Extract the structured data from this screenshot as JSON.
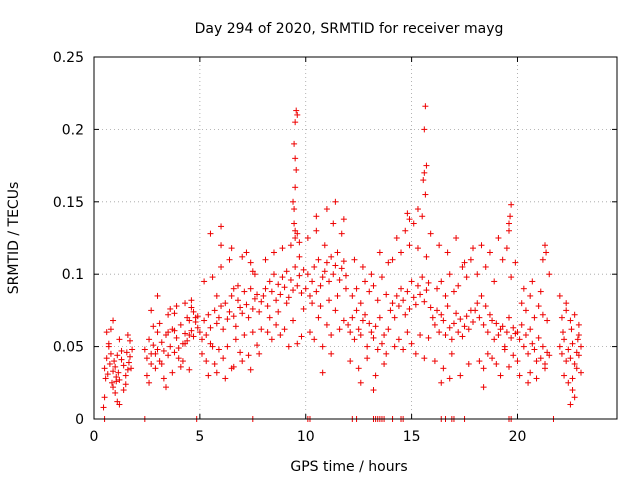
{
  "chart_data": {
    "type": "scatter",
    "title": "Day 294 of 2020, SRMTID for receiver mayg",
    "xlabel": "GPS time / hours",
    "ylabel": "SRMTID / TECUs",
    "xlim": [
      0,
      24.7
    ],
    "ylim": [
      0,
      0.25
    ],
    "xticks": [
      0,
      5,
      10,
      15,
      20
    ],
    "xtick_labels": [
      "0",
      "5",
      "10",
      "15",
      "20"
    ],
    "yticks": [
      0,
      0.05,
      0.1,
      0.15,
      0.2,
      0.25
    ],
    "ytick_labels": [
      "0",
      "0.05",
      "0.1",
      "0.15",
      "0.2",
      "0.25"
    ],
    "grid": true,
    "marker": "+",
    "color": "#ee0000",
    "series": [
      {
        "name": "SRMTID",
        "x": [
          0.5,
          0.55,
          0.6,
          0.65,
          0.7,
          0.75,
          0.8,
          0.85,
          0.9,
          0.95,
          1.0,
          1.05,
          1.1,
          1.15,
          1.2,
          1.3,
          1.4,
          1.5,
          1.55,
          1.6,
          1.65,
          1.7,
          1.75,
          1.8,
          0.6,
          0.7,
          0.9,
          1.0,
          1.2,
          1.4,
          1.6,
          0.5,
          0.8,
          1.1,
          1.3,
          1.5,
          1.7,
          0.9,
          1.2,
          0.45,
          1.05,
          2.4,
          2.5,
          2.6,
          2.7,
          2.8,
          2.9,
          3.0,
          3.1,
          3.2,
          3.3,
          3.4,
          3.5,
          3.6,
          3.7,
          3.8,
          3.9,
          4.0,
          4.1,
          4.2,
          4.3,
          4.4,
          4.5,
          4.6,
          4.7,
          4.8,
          4.9,
          2.5,
          2.7,
          2.9,
          3.1,
          3.3,
          3.5,
          3.7,
          3.9,
          4.1,
          4.3,
          4.5,
          4.7,
          4.9,
          2.6,
          3.0,
          3.4,
          3.8,
          4.2,
          4.6,
          2.8,
          3.2,
          3.6,
          4.0,
          4.4,
          4.8,
          2.7,
          3.5,
          4.3,
          4.5,
          3.0,
          3.8,
          4.6,
          5.0,
          5.1,
          5.2,
          5.3,
          5.4,
          5.5,
          5.6,
          5.7,
          5.8,
          5.9,
          6.0,
          6.1,
          6.2,
          6.3,
          6.4,
          6.5,
          6.6,
          6.7,
          6.8,
          6.9,
          7.0,
          7.1,
          7.2,
          7.3,
          7.4,
          7.5,
          7.6,
          7.7,
          7.8,
          7.9,
          5.1,
          5.3,
          5.5,
          5.7,
          5.9,
          6.1,
          6.3,
          6.5,
          6.7,
          6.9,
          7.1,
          7.3,
          7.5,
          7.7,
          7.9,
          5.2,
          5.6,
          6.0,
          6.4,
          6.8,
          7.2,
          7.6,
          5.4,
          5.8,
          6.2,
          6.6,
          7.0,
          7.4,
          7.8,
          5.5,
          6.0,
          6.5,
          7.0,
          7.5,
          6.0,
          5.8,
          6.6,
          7.4,
          8.0,
          8.1,
          8.2,
          8.3,
          8.4,
          8.5,
          8.6,
          8.7,
          8.8,
          8.9,
          9.0,
          9.1,
          9.2,
          9.3,
          9.4,
          9.5,
          9.6,
          9.7,
          9.8,
          9.9,
          8.2,
          8.4,
          8.6,
          8.8,
          9.0,
          9.2,
          9.4,
          9.6,
          9.8,
          8.1,
          8.5,
          8.9,
          9.3,
          9.7,
          8.3,
          8.7,
          9.1,
          9.5,
          9.9,
          9.45,
          9.5,
          9.55,
          9.5,
          9.45,
          9.5,
          9.6,
          9.55,
          9.4,
          9.45,
          9.5,
          9.6,
          9.7,
          10.0,
          10.1,
          10.2,
          10.3,
          10.4,
          10.5,
          10.6,
          10.7,
          10.8,
          10.9,
          11.0,
          11.1,
          11.2,
          11.3,
          11.4,
          11.5,
          11.6,
          11.7,
          11.8,
          11.9,
          10.2,
          10.4,
          10.6,
          10.8,
          11.0,
          11.2,
          11.4,
          11.6,
          11.8,
          10.1,
          10.5,
          10.9,
          11.3,
          11.7,
          10.3,
          10.7,
          11.1,
          11.5,
          11.9,
          10.5,
          11.0,
          11.4,
          11.8,
          10.8,
          11.2,
          12.0,
          12.1,
          12.2,
          12.3,
          12.4,
          12.5,
          12.6,
          12.7,
          12.8,
          12.9,
          13.0,
          13.1,
          13.2,
          13.3,
          13.4,
          13.5,
          13.6,
          13.7,
          13.8,
          13.9,
          12.2,
          12.4,
          12.6,
          12.8,
          13.0,
          13.2,
          13.4,
          13.6,
          13.8,
          12.1,
          12.5,
          12.9,
          13.3,
          13.7,
          12.3,
          12.7,
          13.1,
          13.5,
          13.9,
          12.6,
          13.2,
          14.0,
          14.1,
          14.2,
          14.3,
          14.4,
          14.5,
          14.6,
          14.7,
          14.8,
          14.9,
          15.0,
          15.1,
          15.2,
          15.3,
          15.4,
          15.5,
          15.6,
          15.7,
          15.8,
          15.9,
          14.2,
          14.4,
          14.6,
          14.8,
          15.0,
          15.2,
          15.4,
          15.6,
          15.8,
          14.1,
          14.5,
          14.9,
          15.3,
          15.7,
          14.3,
          14.7,
          15.1,
          15.5,
          15.9,
          15.55,
          15.6,
          15.65,
          15.6,
          15.65,
          15.7,
          14.8,
          14.9,
          15.3,
          16.0,
          16.1,
          16.2,
          16.3,
          16.4,
          16.5,
          16.6,
          16.7,
          16.8,
          16.9,
          17.0,
          17.1,
          17.2,
          17.3,
          17.4,
          17.5,
          17.6,
          17.7,
          17.8,
          17.9,
          16.2,
          16.4,
          16.6,
          16.8,
          17.0,
          17.2,
          17.4,
          17.6,
          17.8,
          16.1,
          16.5,
          16.9,
          17.3,
          17.7,
          16.3,
          16.7,
          17.1,
          17.5,
          17.9,
          16.4,
          16.8,
          18.0,
          18.1,
          18.2,
          18.3,
          18.4,
          18.5,
          18.6,
          18.7,
          18.8,
          18.9,
          19.0,
          19.1,
          19.2,
          19.3,
          19.4,
          19.5,
          19.6,
          19.7,
          19.8,
          19.9,
          18.2,
          18.4,
          18.6,
          18.8,
          19.0,
          19.2,
          19.4,
          19.6,
          19.8,
          18.1,
          18.5,
          18.9,
          19.3,
          19.7,
          18.3,
          18.7,
          19.1,
          19.5,
          19.9,
          19.6,
          19.65,
          19.7,
          19.6,
          18.4,
          20.0,
          20.1,
          20.2,
          20.3,
          20.4,
          20.5,
          20.6,
          20.7,
          20.8,
          20.9,
          21.0,
          21.1,
          21.2,
          21.3,
          21.4,
          21.5,
          20.2,
          20.4,
          20.6,
          20.8,
          21.0,
          21.2,
          21.4,
          20.1,
          20.5,
          20.9,
          21.3,
          20.3,
          20.7,
          21.1,
          21.5,
          20.0,
          20.6,
          21.2,
          21.3,
          21.35,
          22.0,
          22.1,
          22.2,
          22.3,
          22.4,
          22.5,
          22.6,
          22.7,
          22.8,
          22.9,
          23.0,
          22.1,
          22.3,
          22.5,
          22.7,
          22.9,
          22.2,
          22.4,
          22.6,
          22.8,
          23.0,
          22.0,
          22.3,
          22.6,
          22.9,
          22.5,
          22.7,
          22.15,
          22.55,
          22.85,
          0.5,
          2.4,
          4.85,
          7.5,
          10.1,
          10.2,
          12.2,
          12.4,
          13.2,
          13.3,
          13.4,
          13.5,
          13.6,
          13.7,
          14.1,
          14.5,
          14.6,
          16.4,
          16.6,
          16.9,
          17.0,
          17.5,
          19.6,
          19.7,
          21.7
        ],
        "y": [
          0.035,
          0.028,
          0.042,
          0.031,
          0.05,
          0.038,
          0.045,
          0.025,
          0.033,
          0.04,
          0.036,
          0.029,
          0.044,
          0.032,
          0.027,
          0.041,
          0.037,
          0.03,
          0.046,
          0.034,
          0.039,
          0.043,
          0.035,
          0.048,
          0.06,
          0.052,
          0.022,
          0.018,
          0.055,
          0.02,
          0.058,
          0.015,
          0.062,
          0.012,
          0.047,
          0.024,
          0.054,
          0.068,
          0.01,
          0.008,
          0.026,
          0.048,
          0.042,
          0.055,
          0.038,
          0.051,
          0.045,
          0.06,
          0.04,
          0.053,
          0.047,
          0.058,
          0.044,
          0.05,
          0.062,
          0.046,
          0.056,
          0.049,
          0.065,
          0.052,
          0.059,
          0.054,
          0.068,
          0.061,
          0.057,
          0.07,
          0.063,
          0.03,
          0.075,
          0.035,
          0.066,
          0.028,
          0.072,
          0.032,
          0.078,
          0.036,
          0.08,
          0.034,
          0.074,
          0.071,
          0.025,
          0.085,
          0.022,
          0.073,
          0.04,
          0.082,
          0.064,
          0.038,
          0.076,
          0.042,
          0.07,
          0.067,
          0.045,
          0.06,
          0.052,
          0.058,
          0.048,
          0.061,
          0.077,
          0.06,
          0.055,
          0.068,
          0.058,
          0.072,
          0.063,
          0.05,
          0.075,
          0.066,
          0.07,
          0.078,
          0.062,
          0.08,
          0.069,
          0.074,
          0.085,
          0.071,
          0.064,
          0.082,
          0.077,
          0.073,
          0.088,
          0.079,
          0.07,
          0.09,
          0.076,
          0.083,
          0.086,
          0.074,
          0.081,
          0.045,
          0.04,
          0.052,
          0.038,
          0.048,
          0.042,
          0.05,
          0.035,
          0.055,
          0.046,
          0.058,
          0.044,
          0.06,
          0.051,
          0.062,
          0.095,
          0.098,
          0.105,
          0.11,
          0.092,
          0.115,
          0.1,
          0.03,
          0.032,
          0.028,
          0.036,
          0.04,
          0.034,
          0.045,
          0.128,
          0.12,
          0.118,
          0.112,
          0.102,
          0.133,
          0.085,
          0.09,
          0.108,
          0.085,
          0.09,
          0.078,
          0.095,
          0.088,
          0.1,
          0.082,
          0.093,
          0.086,
          0.098,
          0.091,
          0.102,
          0.084,
          0.096,
          0.089,
          0.105,
          0.092,
          0.099,
          0.087,
          0.103,
          0.06,
          0.055,
          0.065,
          0.058,
          0.062,
          0.05,
          0.068,
          0.052,
          0.057,
          0.11,
          0.115,
          0.118,
          0.12,
          0.112,
          0.07,
          0.074,
          0.08,
          0.125,
          0.076,
          0.145,
          0.16,
          0.172,
          0.18,
          0.19,
          0.205,
          0.21,
          0.213,
          0.15,
          0.135,
          0.13,
          0.128,
          0.122,
          0.09,
          0.1,
          0.085,
          0.095,
          0.105,
          0.088,
          0.11,
          0.092,
          0.098,
          0.102,
          0.108,
          0.095,
          0.112,
          0.1,
          0.106,
          0.115,
          0.096,
          0.104,
          0.109,
          0.099,
          0.06,
          0.055,
          0.07,
          0.05,
          0.065,
          0.058,
          0.075,
          0.062,
          0.068,
          0.125,
          0.13,
          0.12,
          0.135,
          0.128,
          0.08,
          0.078,
          0.082,
          0.085,
          0.09,
          0.14,
          0.145,
          0.15,
          0.138,
          0.032,
          0.045,
          0.065,
          0.06,
          0.07,
          0.055,
          0.075,
          0.062,
          0.058,
          0.068,
          0.072,
          0.05,
          0.066,
          0.06,
          0.056,
          0.064,
          0.048,
          0.07,
          0.052,
          0.058,
          0.045,
          0.062,
          0.085,
          0.09,
          0.08,
          0.095,
          0.088,
          0.092,
          0.082,
          0.098,
          0.086,
          0.04,
          0.035,
          0.042,
          0.03,
          0.038,
          0.11,
          0.105,
          0.1,
          0.115,
          0.108,
          0.025,
          0.02,
          0.075,
          0.08,
          0.07,
          0.085,
          0.078,
          0.09,
          0.082,
          0.072,
          0.088,
          0.076,
          0.095,
          0.084,
          0.079,
          0.092,
          0.086,
          0.098,
          0.081,
          0.089,
          0.094,
          0.077,
          0.05,
          0.055,
          0.048,
          0.06,
          0.052,
          0.045,
          0.058,
          0.042,
          0.056,
          0.11,
          0.115,
          0.12,
          0.118,
          0.112,
          0.125,
          0.13,
          0.135,
          0.14,
          0.128,
          0.165,
          0.17,
          0.155,
          0.2,
          0.216,
          0.175,
          0.142,
          0.138,
          0.145,
          0.07,
          0.065,
          0.075,
          0.06,
          0.072,
          0.068,
          0.058,
          0.078,
          0.063,
          0.055,
          0.066,
          0.073,
          0.06,
          0.069,
          0.057,
          0.064,
          0.071,
          0.062,
          0.075,
          0.067,
          0.09,
          0.095,
          0.085,
          0.1,
          0.088,
          0.092,
          0.105,
          0.098,
          0.11,
          0.04,
          0.035,
          0.045,
          0.03,
          0.038,
          0.12,
          0.115,
          0.125,
          0.108,
          0.118,
          0.025,
          0.028,
          0.075,
          0.08,
          0.07,
          0.085,
          0.065,
          0.078,
          0.06,
          0.072,
          0.068,
          0.055,
          0.066,
          0.058,
          0.062,
          0.064,
          0.05,
          0.06,
          0.07,
          0.056,
          0.063,
          0.059,
          0.04,
          0.035,
          0.045,
          0.042,
          0.038,
          0.03,
          0.048,
          0.036,
          0.044,
          0.1,
          0.105,
          0.095,
          0.11,
          0.098,
          0.12,
          0.115,
          0.125,
          0.118,
          0.108,
          0.13,
          0.14,
          0.148,
          0.135,
          0.022,
          0.06,
          0.055,
          0.065,
          0.05,
          0.058,
          0.045,
          0.062,
          0.052,
          0.048,
          0.04,
          0.056,
          0.042,
          0.05,
          0.038,
          0.046,
          0.044,
          0.08,
          0.075,
          0.085,
          0.07,
          0.078,
          0.072,
          0.068,
          0.03,
          0.025,
          0.028,
          0.035,
          0.09,
          0.095,
          0.088,
          0.1,
          0.04,
          0.032,
          0.11,
          0.12,
          0.115,
          0.05,
          0.045,
          0.055,
          0.04,
          0.048,
          0.042,
          0.052,
          0.038,
          0.046,
          0.044,
          0.05,
          0.07,
          0.075,
          0.068,
          0.072,
          0.065,
          0.03,
          0.025,
          0.028,
          0.035,
          0.032,
          0.085,
          0.08,
          0.02,
          0.058,
          0.01,
          0.015,
          0.06,
          0.062,
          0.055,
          0,
          0,
          0,
          0,
          0,
          0,
          0,
          0,
          0,
          0,
          0,
          0,
          0,
          0,
          0,
          0,
          0,
          0,
          0,
          0,
          0,
          0,
          0,
          0,
          0
        ]
      }
    ]
  }
}
